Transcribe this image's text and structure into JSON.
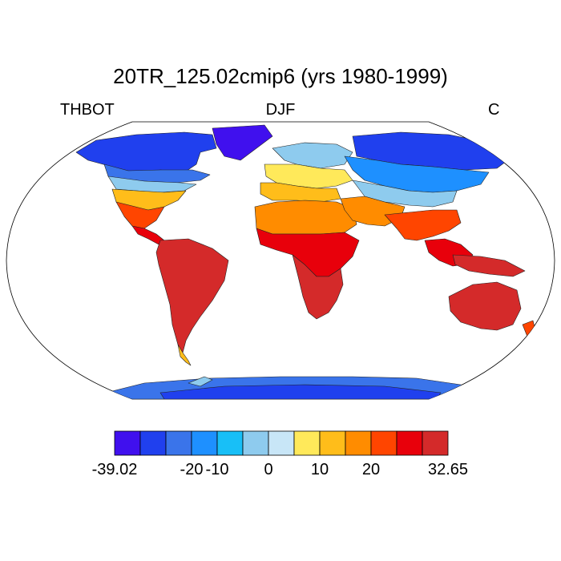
{
  "title": "20TR_125.02cmip6 (yrs 1980-1999)",
  "variable": "THBOT",
  "season": "DJF",
  "units": "C",
  "colors": {
    "ocean": "#ffffff",
    "levels": [
      "#4010ee",
      "#2040ee",
      "#3a74ea",
      "#1e90ff",
      "#18bff7",
      "#8ecbee",
      "#c8e6f7",
      "#ffe95a",
      "#ffbd1a",
      "#ff8c00",
      "#ff4500",
      "#e8000b",
      "#d42a2a"
    ]
  },
  "colorbar": {
    "tick_labels": [
      {
        "text": "-39.02",
        "index": 0
      },
      {
        "text": "-20",
        "index": 3
      },
      {
        "text": "-10",
        "index": 4
      },
      {
        "text": "0",
        "index": 6
      },
      {
        "text": "10",
        "index": 8
      },
      {
        "text": "20",
        "index": 10
      },
      {
        "text": "32.65",
        "index": 13
      }
    ]
  },
  "chart_data": {
    "type": "heatmap",
    "title": "20TR_125.02cmip6 (yrs 1980-1999)",
    "variable": "THBOT",
    "season": "DJF",
    "units": "C",
    "projection": "Robinson",
    "levels": [
      -39.02,
      -30,
      -25,
      -20,
      -10,
      -5,
      0,
      5,
      10,
      15,
      20,
      25,
      32.65
    ],
    "description_regions": [
      {
        "region": "Antarctica",
        "class": 2
      },
      {
        "region": "Greenland",
        "class": 0
      },
      {
        "region": "Siberia",
        "class": 1
      },
      {
        "region": "Canada",
        "class": 1
      },
      {
        "region": "Sahara",
        "class": 9
      },
      {
        "region": "Central Africa",
        "class": 12
      },
      {
        "region": "Amazon",
        "class": 12
      },
      {
        "region": "Australia",
        "class": 12
      }
    ]
  }
}
